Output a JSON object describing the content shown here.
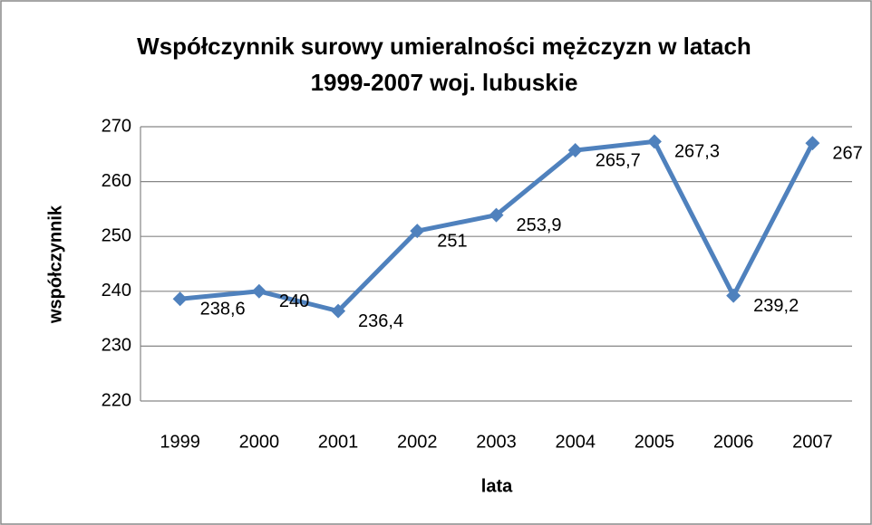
{
  "chart_data": {
    "type": "line",
    "title": [
      "Współczynnik surowy umieralności mężczyzn  w latach",
      "1999-2007 woj. lubuskie"
    ],
    "x_label": "lata",
    "y_label": "współczynnik",
    "categories": [
      "1999",
      "2000",
      "2001",
      "2002",
      "2003",
      "2004",
      "2005",
      "2006",
      "2007"
    ],
    "series": [
      {
        "name": "współczynnik",
        "color": "#4f81bd",
        "values": [
          238.6,
          240,
          236.4,
          251,
          253.9,
          265.7,
          267.3,
          239.2,
          267
        ],
        "value_labels": [
          "238,6",
          "240",
          "236,4",
          "251",
          "253,9",
          "265,7",
          "267,3",
          "239,2",
          "267"
        ]
      }
    ],
    "ylim": [
      220,
      270
    ],
    "yticks": [
      220,
      230,
      240,
      250,
      260,
      270
    ],
    "grid": true
  }
}
